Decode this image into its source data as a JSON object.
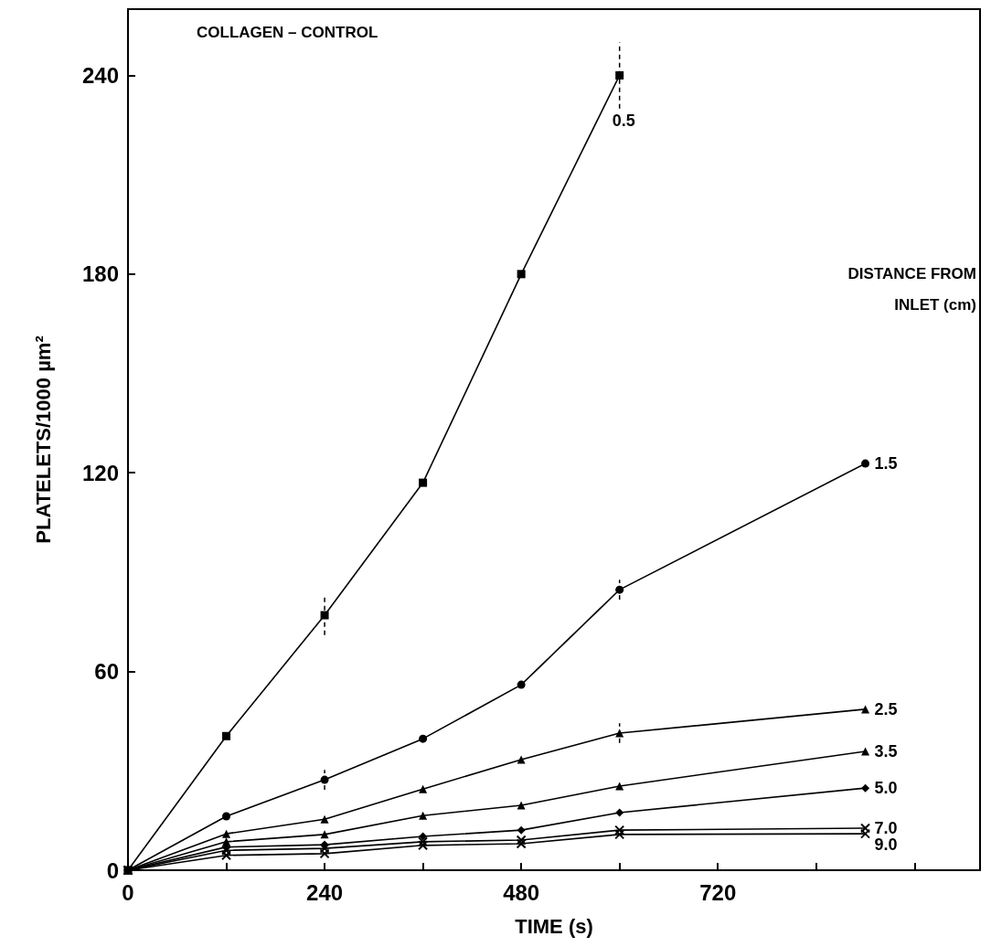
{
  "chart_data": {
    "type": "line",
    "title": "COLLAGEN – CONTROL",
    "xlabel": "TIME (s)",
    "ylabel": "PLATELETS/1000 µm²",
    "legend_title": "DISTANCE FROM INLET (cm)",
    "x": [
      0,
      120,
      240,
      360,
      480,
      600,
      900
    ],
    "series": [
      {
        "name": "0.5",
        "color": "#000000",
        "marker": "square",
        "x": [
          0,
          120,
          240,
          360,
          480,
          600
        ],
        "values": [
          0,
          40.5,
          77,
          117,
          180,
          240
        ],
        "errors": [
          null,
          null,
          6,
          null,
          null,
          10
        ]
      },
      {
        "name": "1.5",
        "color": "#000000",
        "marker": "circle",
        "values": [
          0,
          16.3,
          27.3,
          39.7,
          56,
          84.7,
          122.8
        ],
        "errors": [
          null,
          null,
          3,
          null,
          null,
          3,
          null
        ]
      },
      {
        "name": "2.5",
        "color": "#000000",
        "marker": "triangle",
        "values": [
          0,
          11,
          15.4,
          24.5,
          33.4,
          41.4,
          48.6
        ],
        "errors": [
          null,
          null,
          null,
          null,
          null,
          3,
          null
        ]
      },
      {
        "name": "3.5",
        "color": "#000000",
        "marker": "triangle",
        "values": [
          0,
          8.6,
          10.8,
          16.5,
          19.6,
          25.4,
          35.9
        ]
      },
      {
        "name": "5.0",
        "color": "#000000",
        "marker": "diamond",
        "values": [
          0,
          7,
          7.7,
          10.2,
          12.1,
          17.4,
          24.8
        ]
      },
      {
        "name": "7.0",
        "color": "#000000",
        "marker": "cross",
        "values": [
          0,
          6,
          6.6,
          8.6,
          9.1,
          12.1,
          12.7
        ]
      },
      {
        "name": "9.0",
        "color": "#000000",
        "marker": "cross",
        "values": [
          0,
          4.5,
          5,
          7.5,
          8,
          10.8,
          11
        ]
      }
    ],
    "xlim": [
      0,
      1040
    ],
    "xticks": [
      0,
      {
        "value": 120,
        "label": null
      },
      240,
      {
        "value": 360,
        "label": null
      },
      480,
      {
        "value": 600,
        "label": null
      },
      720,
      {
        "value": 840,
        "label": null
      },
      {
        "value": 960,
        "label": null
      }
    ],
    "ylim": [
      0,
      260
    ],
    "yticks": [
      0,
      60,
      120,
      180,
      240
    ],
    "grid": false,
    "legend": false,
    "line_style": "solid"
  }
}
